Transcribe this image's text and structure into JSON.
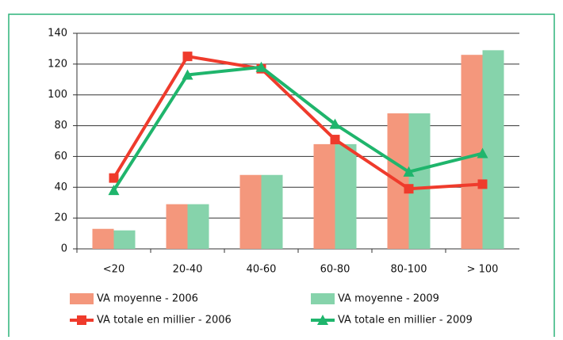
{
  "chart_data": {
    "type": "bar",
    "categories": [
      "<20",
      "20-40",
      "40-60",
      "60-80",
      "80-100",
      "> 100"
    ],
    "series": [
      {
        "name": "VA moyenne - 2006",
        "type": "bar",
        "color": "#f4977c",
        "values": [
          13,
          29,
          48,
          68,
          88,
          126
        ]
      },
      {
        "name": "VA moyenne - 2009",
        "type": "bar",
        "color": "#86d3ab",
        "values": [
          12,
          29,
          48,
          68,
          88,
          129
        ]
      },
      {
        "name": "VA totale en millier - 2006",
        "type": "line",
        "marker": "square",
        "color": "#ef3b2c",
        "values": [
          46,
          125,
          117,
          71,
          39,
          42
        ]
      },
      {
        "name": "VA totale en millier - 2009",
        "type": "line",
        "marker": "triangle",
        "color": "#1fb56c",
        "values": [
          38,
          113,
          118,
          81,
          50,
          62
        ]
      }
    ],
    "ylim": [
      0,
      140
    ],
    "yticks": [
      0,
      20,
      40,
      60,
      80,
      100,
      120,
      140
    ],
    "grid": true
  }
}
